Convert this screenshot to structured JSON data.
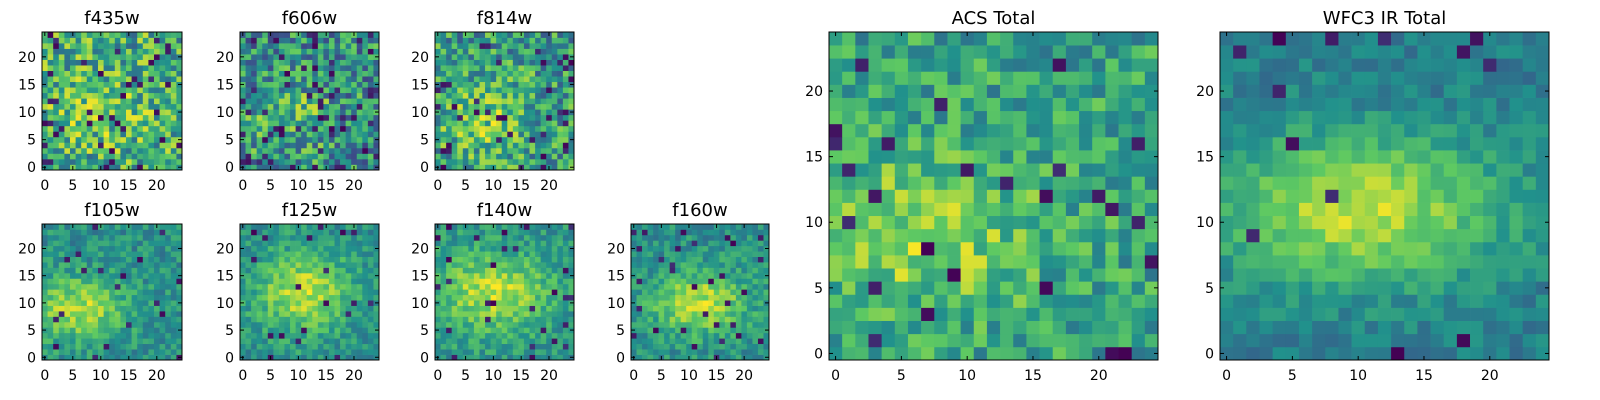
{
  "colormap": {
    "name": "viridis",
    "stops": [
      "#440154",
      "#3b528b",
      "#21918c",
      "#5ec962",
      "#fde725"
    ]
  },
  "chart_data": [
    {
      "type": "heatmap",
      "title": "f435w",
      "grid": [
        25,
        25
      ],
      "x_ticks": [
        "0",
        "5",
        "10",
        "15",
        "20"
      ],
      "y_ticks": [
        "0",
        "5",
        "10",
        "15",
        "20"
      ],
      "xlim": [
        -0.5,
        24.5
      ],
      "ylim": [
        -0.5,
        24.5
      ],
      "seed": 11,
      "noise": 0.3,
      "base": 0.62,
      "blob": {
        "x": 10,
        "y": 10,
        "sx": 7,
        "sy": 5,
        "amp": 0.1
      },
      "dark_pixel_fraction": 0.06
    },
    {
      "type": "heatmap",
      "title": "f606w",
      "grid": [
        25,
        25
      ],
      "x_ticks": [
        "0",
        "5",
        "10",
        "15",
        "20"
      ],
      "y_ticks": [
        "0",
        "5",
        "10",
        "15",
        "20"
      ],
      "xlim": [
        -0.5,
        24.5
      ],
      "ylim": [
        -0.5,
        24.5
      ],
      "seed": 23,
      "noise": 0.3,
      "base": 0.5,
      "blob": {
        "x": 8,
        "y": 9,
        "sx": 6,
        "sy": 4,
        "amp": 0.2
      },
      "dark_pixel_fraction": 0.08
    },
    {
      "type": "heatmap",
      "title": "f814w",
      "grid": [
        25,
        25
      ],
      "x_ticks": [
        "0",
        "5",
        "10",
        "15",
        "20"
      ],
      "y_ticks": [
        "0",
        "5",
        "10",
        "15",
        "20"
      ],
      "xlim": [
        -0.5,
        24.5
      ],
      "ylim": [
        -0.5,
        24.5
      ],
      "seed": 37,
      "noise": 0.28,
      "base": 0.55,
      "blob": {
        "x": 8,
        "y": 9,
        "sx": 6,
        "sy": 5,
        "amp": 0.2
      },
      "dark_pixel_fraction": 0.06
    },
    {
      "type": "heatmap",
      "title": "f105w",
      "grid": [
        25,
        25
      ],
      "x_ticks": [
        "0",
        "5",
        "10",
        "15",
        "20"
      ],
      "y_ticks": [
        "0",
        "5",
        "10",
        "15",
        "20"
      ],
      "xlim": [
        -0.5,
        24.5
      ],
      "ylim": [
        -0.5,
        24.5
      ],
      "seed": 41,
      "noise": 0.14,
      "base": 0.5,
      "blob": {
        "x": 6,
        "y": 9,
        "sx": 6,
        "sy": 4,
        "amp": 0.38
      },
      "dark_pixel_fraction": 0.04
    },
    {
      "type": "heatmap",
      "title": "f125w",
      "grid": [
        25,
        25
      ],
      "x_ticks": [
        "0",
        "5",
        "10",
        "15",
        "20"
      ],
      "y_ticks": [
        "0",
        "5",
        "10",
        "15",
        "20"
      ],
      "xlim": [
        -0.5,
        24.5
      ],
      "ylim": [
        -0.5,
        24.5
      ],
      "seed": 53,
      "noise": 0.14,
      "base": 0.5,
      "blob": {
        "x": 11,
        "y": 12,
        "sx": 6,
        "sy": 5,
        "amp": 0.4
      },
      "dark_pixel_fraction": 0.04
    },
    {
      "type": "heatmap",
      "title": "f140w",
      "grid": [
        25,
        25
      ],
      "x_ticks": [
        "0",
        "5",
        "10",
        "15",
        "20"
      ],
      "y_ticks": [
        "0",
        "5",
        "10",
        "15",
        "20"
      ],
      "xlim": [
        -0.5,
        24.5
      ],
      "ylim": [
        -0.5,
        24.5
      ],
      "seed": 67,
      "noise": 0.14,
      "base": 0.52,
      "blob": {
        "x": 10,
        "y": 12,
        "sx": 7,
        "sy": 5,
        "amp": 0.38
      },
      "dark_pixel_fraction": 0.04
    },
    {
      "type": "heatmap",
      "title": "f160w",
      "grid": [
        25,
        25
      ],
      "x_ticks": [
        "0",
        "5",
        "10",
        "15",
        "20"
      ],
      "y_ticks": [
        "0",
        "5",
        "10",
        "15",
        "20"
      ],
      "xlim": [
        -0.5,
        24.5
      ],
      "ylim": [
        -0.5,
        24.5
      ],
      "seed": 71,
      "noise": 0.14,
      "base": 0.5,
      "blob": {
        "x": 12,
        "y": 10,
        "sx": 6,
        "sy": 4,
        "amp": 0.4
      },
      "dark_pixel_fraction": 0.05
    },
    {
      "type": "heatmap",
      "title": "ACS Total",
      "grid": [
        25,
        25
      ],
      "x_ticks": [
        "0",
        "5",
        "10",
        "15",
        "20"
      ],
      "y_ticks": [
        "0",
        "5",
        "10",
        "15",
        "20"
      ],
      "xlim": [
        -0.5,
        24.5
      ],
      "ylim": [
        -0.5,
        24.5
      ],
      "seed": 83,
      "noise": 0.2,
      "base": 0.58,
      "blob": {
        "x": 6,
        "y": 9,
        "sx": 7,
        "sy": 4,
        "amp": 0.24
      },
      "dark_pixel_fraction": 0.05
    },
    {
      "type": "heatmap",
      "title": "WFC3 IR Total",
      "grid": [
        25,
        25
      ],
      "x_ticks": [
        "0",
        "5",
        "10",
        "15",
        "20"
      ],
      "y_ticks": [
        "0",
        "5",
        "10",
        "15",
        "20"
      ],
      "xlim": [
        -0.5,
        24.5
      ],
      "ylim": [
        -0.5,
        24.5
      ],
      "seed": 97,
      "noise": 0.1,
      "base": 0.42,
      "blob": {
        "x": 10,
        "y": 11,
        "sx": 8,
        "sy": 4,
        "amp": 0.48
      },
      "dark_pixel_fraction": 0.02
    }
  ]
}
